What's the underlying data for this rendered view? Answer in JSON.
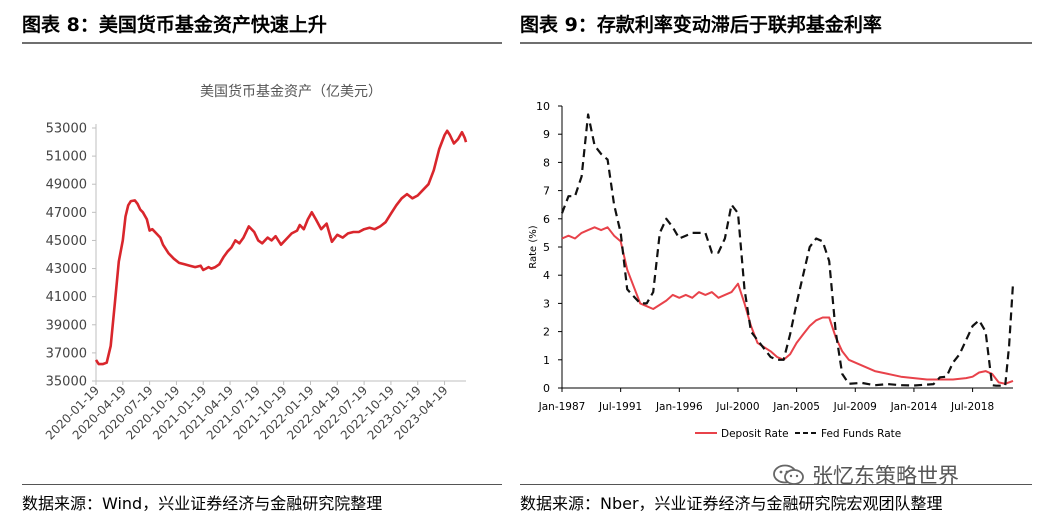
{
  "panels": {
    "left_title": "图表 8：美国货币基金资产快速上升",
    "right_title": "图表 9：存款利率变动滞后于联邦基金利率",
    "left_source": "数据来源：Wind，兴业证券经济与金融研究院整理",
    "right_source": "数据来源：Nber，兴业证券经济与金融研究院宏观团队整理"
  },
  "watermark": {
    "text": "张忆东策略世界",
    "icon": "wechat-icon"
  },
  "chart_data": [
    {
      "type": "line",
      "title": "美国货币基金资产（亿美元）",
      "xlabel": "",
      "ylabel": "",
      "x_tick_labels": [
        "2020-01-19",
        "2020-04-19",
        "2020-07-19",
        "2020-10-19",
        "2021-01-19",
        "2021-04-19",
        "2021-07-19",
        "2021-10-19",
        "2022-01-19",
        "2022-04-19",
        "2022-07-19",
        "2022-10-19",
        "2023-01-19",
        "2023-04-19"
      ],
      "x_range": [
        0,
        13.8
      ],
      "y_ticks": [
        35000,
        37000,
        39000,
        41000,
        43000,
        45000,
        47000,
        49000,
        51000,
        53000
      ],
      "y_tick_labels": [
        "35000",
        "37000",
        "39000",
        "41000",
        "43000",
        "45000",
        "47000",
        "49000",
        "51000",
        "53000"
      ],
      "ylim": [
        35000,
        53000
      ],
      "grid": false,
      "color": "#d9262c",
      "series": [
        {
          "x": [
            0,
            0.1,
            0.25,
            0.4,
            0.55,
            0.7,
            0.85,
            1.0,
            1.1,
            1.2,
            1.3,
            1.45,
            1.55,
            1.65,
            1.75,
            1.9,
            2.0,
            2.1,
            2.25,
            2.4,
            2.5,
            2.7,
            2.9,
            3.1,
            3.3,
            3.5,
            3.7,
            3.9,
            4.0,
            4.1,
            4.2,
            4.3,
            4.45,
            4.6,
            4.75,
            4.9,
            5.05,
            5.2,
            5.35,
            5.5,
            5.7,
            5.9,
            6.05,
            6.2,
            6.4,
            6.55,
            6.7,
            6.9,
            7.1,
            7.3,
            7.5,
            7.6,
            7.75,
            7.9,
            8.05,
            8.2,
            8.4,
            8.6,
            8.8,
            9.0,
            9.2,
            9.4,
            9.6,
            9.8,
            10.0,
            10.2,
            10.4,
            10.6,
            10.8,
            11.0,
            11.2,
            11.4,
            11.6,
            11.8,
            12.0,
            12.2,
            12.4,
            12.6,
            12.8,
            13.0,
            13.1,
            13.2,
            13.35,
            13.5,
            13.65,
            13.75,
            13.8
          ],
          "y": [
            36500,
            36200,
            36200,
            36300,
            37500,
            40500,
            43500,
            45000,
            46700,
            47500,
            47800,
            47850,
            47600,
            47200,
            47000,
            46500,
            45700,
            45800,
            45500,
            45200,
            44700,
            44100,
            43700,
            43400,
            43300,
            43200,
            43100,
            43200,
            42900,
            43000,
            43100,
            43000,
            43100,
            43300,
            43800,
            44200,
            44500,
            45000,
            44800,
            45200,
            46000,
            45600,
            45000,
            44800,
            45200,
            45000,
            45300,
            44700,
            45100,
            45500,
            45700,
            46100,
            45800,
            46500,
            47000,
            46500,
            45800,
            46200,
            44900,
            45400,
            45200,
            45500,
            45600,
            45600,
            45800,
            45900,
            45800,
            46000,
            46300,
            46900,
            47500,
            48000,
            48300,
            48000,
            48200,
            48600,
            49000,
            50000,
            51500,
            52500,
            52800,
            52500,
            51900,
            52200,
            52700,
            52300,
            52000
          ]
        }
      ]
    },
    {
      "type": "line",
      "title": "",
      "xlabel": "",
      "ylabel": "Rate (%)",
      "x_tick_labels": [
        "Jan-1987",
        "Jul-1991",
        "Jan-1996",
        "Jul-2000",
        "Jan-2005",
        "Jul-2009",
        "Jan-2014",
        "Jul-2018"
      ],
      "x_tick_years": [
        1987,
        1991.5,
        1996,
        2000.5,
        2005,
        2009.5,
        2014,
        2018.5
      ],
      "x_range": [
        1987,
        2021.6
      ],
      "y_ticks": [
        0,
        1,
        2,
        3,
        4,
        5,
        6,
        7,
        8,
        9,
        10
      ],
      "y_tick_labels": [
        "0",
        "1",
        "2",
        "3",
        "4",
        "5",
        "6",
        "7",
        "8",
        "9",
        "10"
      ],
      "ylim": [
        0,
        10
      ],
      "grid": false,
      "legend": "bottom",
      "series": [
        {
          "name": "Deposit Rate",
          "color": "#e8424a",
          "style": "solid",
          "x": [
            1987,
            1987.5,
            1988,
            1988.5,
            1989,
            1989.5,
            1990,
            1990.5,
            1991,
            1991.5,
            1992,
            1993,
            1993.5,
            1994,
            1995,
            1995.5,
            1996,
            1996.5,
            1997,
            1997.5,
            1998,
            1998.5,
            1999,
            1999.5,
            2000,
            2000.5,
            2001,
            2001.5,
            2002,
            2003,
            2003.5,
            2004,
            2004.5,
            2005,
            2005.5,
            2006,
            2006.5,
            2007,
            2007.5,
            2008,
            2008.5,
            2009,
            2010,
            2011,
            2012,
            2013,
            2014,
            2015,
            2016,
            2017,
            2018,
            2018.5,
            2019,
            2019.5,
            2020,
            2020.5,
            2021,
            2021.6
          ],
          "y": [
            5.3,
            5.4,
            5.3,
            5.5,
            5.6,
            5.7,
            5.6,
            5.7,
            5.4,
            5.2,
            4.2,
            3.0,
            2.9,
            2.8,
            3.1,
            3.3,
            3.2,
            3.3,
            3.2,
            3.4,
            3.3,
            3.4,
            3.2,
            3.3,
            3.4,
            3.7,
            3.0,
            2.2,
            1.6,
            1.3,
            1.1,
            1.0,
            1.2,
            1.6,
            1.9,
            2.2,
            2.4,
            2.5,
            2.5,
            1.8,
            1.3,
            1.0,
            0.8,
            0.6,
            0.5,
            0.4,
            0.35,
            0.3,
            0.3,
            0.3,
            0.35,
            0.4,
            0.55,
            0.6,
            0.5,
            0.2,
            0.15,
            0.25
          ]
        },
        {
          "name": "Fed Funds Rate",
          "color": "#111111",
          "style": "dashed",
          "x": [
            1987,
            1987.5,
            1988,
            1988.5,
            1989,
            1989.5,
            1990,
            1990.5,
            1991,
            1991.5,
            1992,
            1993,
            1993.5,
            1994,
            1994.5,
            1995,
            1995.5,
            1996,
            1996.5,
            1997,
            1997.5,
            1998,
            1998.5,
            1999,
            1999.5,
            2000,
            2000.5,
            2001,
            2001.5,
            2002,
            2003,
            2003.5,
            2004,
            2004.5,
            2005,
            2005.5,
            2006,
            2006.5,
            2007,
            2007.5,
            2008,
            2008.5,
            2009,
            2010,
            2011,
            2012,
            2013,
            2014,
            2015,
            2015.5,
            2016,
            2016.5,
            2017,
            2017.5,
            2018,
            2018.5,
            2019,
            2019.5,
            2020,
            2020.3,
            2020.6,
            2021,
            2021.3,
            2021.6
          ],
          "y": [
            6.2,
            6.8,
            6.8,
            7.5,
            9.7,
            8.6,
            8.3,
            8.1,
            6.5,
            5.5,
            3.5,
            3.0,
            3.0,
            3.4,
            5.5,
            6.0,
            5.7,
            5.3,
            5.4,
            5.5,
            5.5,
            5.5,
            4.8,
            4.8,
            5.3,
            6.5,
            6.2,
            3.5,
            2.0,
            1.7,
            1.1,
            1.0,
            1.0,
            1.9,
            3.0,
            4.0,
            5.0,
            5.3,
            5.2,
            4.5,
            2.0,
            0.5,
            0.15,
            0.18,
            0.1,
            0.14,
            0.1,
            0.09,
            0.12,
            0.14,
            0.38,
            0.4,
            0.9,
            1.2,
            1.7,
            2.2,
            2.4,
            2.0,
            0.1,
            0.08,
            0.08,
            0.08,
            1.5,
            3.7
          ]
        }
      ]
    }
  ]
}
